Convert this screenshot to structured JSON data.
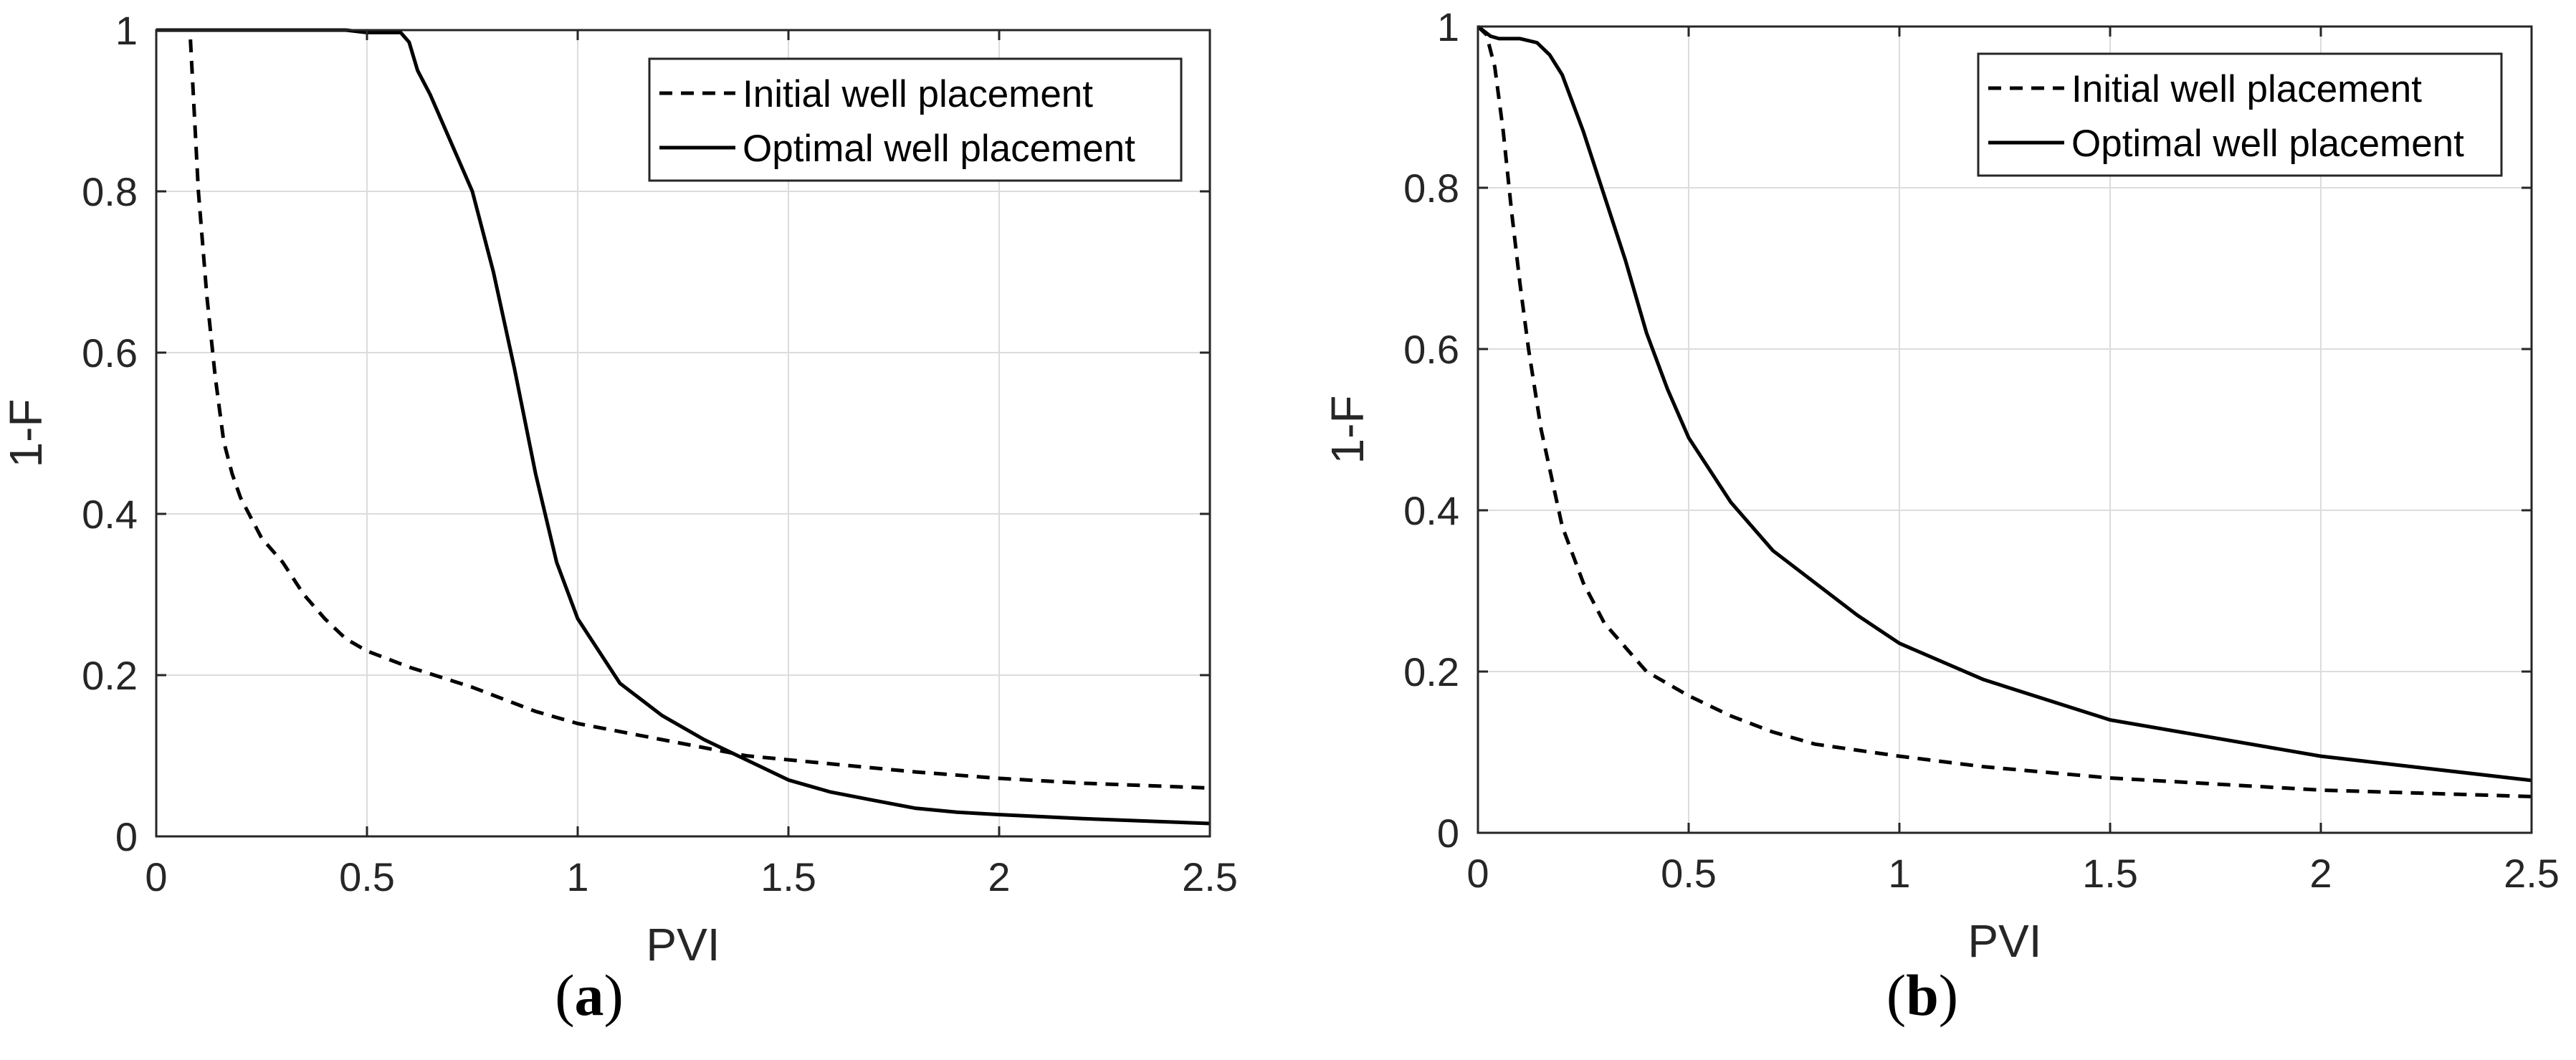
{
  "chart_data": [
    {
      "panel": "a",
      "type": "line",
      "xlabel": "PVI",
      "ylabel": "1-F",
      "xlim": [
        0,
        2.5
      ],
      "ylim": [
        0,
        1
      ],
      "xticks": [
        "0",
        "0.5",
        "1",
        "1.5",
        "2",
        "2.5"
      ],
      "yticks": [
        "0",
        "0.2",
        "0.4",
        "0.6",
        "0.8",
        "1"
      ],
      "grid": true,
      "legend_position": "top-right",
      "series": [
        {
          "name": "Initial well placement",
          "style": "dashed",
          "color": "#000000",
          "x": [
            0,
            0.05,
            0.08,
            0.09,
            0.1,
            0.12,
            0.14,
            0.16,
            0.18,
            0.2,
            0.25,
            0.3,
            0.35,
            0.4,
            0.45,
            0.5,
            0.6,
            0.75,
            0.9,
            1.0,
            1.2,
            1.4,
            1.6,
            1.8,
            2.0,
            2.2,
            2.5
          ],
          "y": [
            1.0,
            1.0,
            1.0,
            0.9,
            0.8,
            0.67,
            0.57,
            0.49,
            0.45,
            0.42,
            0.37,
            0.34,
            0.3,
            0.27,
            0.245,
            0.23,
            0.21,
            0.185,
            0.155,
            0.14,
            0.12,
            0.1,
            0.09,
            0.08,
            0.072,
            0.066,
            0.06
          ]
        },
        {
          "name": "Optimal well placement",
          "style": "solid",
          "color": "#000000",
          "x": [
            0,
            0.45,
            0.5,
            0.58,
            0.6,
            0.62,
            0.65,
            0.7,
            0.75,
            0.8,
            0.85,
            0.9,
            0.95,
            1.0,
            1.05,
            1.1,
            1.2,
            1.3,
            1.4,
            1.5,
            1.6,
            1.7,
            1.8,
            1.9,
            2.0,
            2.2,
            2.5
          ],
          "y": [
            1.0,
            1.0,
            0.997,
            0.997,
            0.985,
            0.95,
            0.92,
            0.86,
            0.8,
            0.7,
            0.58,
            0.45,
            0.34,
            0.27,
            0.23,
            0.19,
            0.15,
            0.12,
            0.095,
            0.07,
            0.055,
            0.045,
            0.035,
            0.03,
            0.027,
            0.022,
            0.016
          ]
        }
      ]
    },
    {
      "panel": "b",
      "type": "line",
      "xlabel": "PVI",
      "ylabel": "1-F",
      "xlim": [
        0,
        2.5
      ],
      "ylim": [
        0,
        1
      ],
      "xticks": [
        "0",
        "0.5",
        "1",
        "1.5",
        "2",
        "2.5"
      ],
      "yticks": [
        "0",
        "0.2",
        "0.4",
        "0.6",
        "0.8",
        "1"
      ],
      "grid": true,
      "legend_position": "top-right",
      "series": [
        {
          "name": "Initial well placement",
          "style": "dashed",
          "color": "#000000",
          "x": [
            0,
            0.02,
            0.04,
            0.06,
            0.08,
            0.1,
            0.12,
            0.15,
            0.2,
            0.25,
            0.3,
            0.35,
            0.4,
            0.5,
            0.6,
            0.7,
            0.8,
            1.0,
            1.2,
            1.5,
            2.0,
            2.5
          ],
          "y": [
            1.0,
            0.99,
            0.95,
            0.87,
            0.77,
            0.68,
            0.6,
            0.5,
            0.38,
            0.31,
            0.26,
            0.23,
            0.2,
            0.17,
            0.145,
            0.125,
            0.11,
            0.095,
            0.082,
            0.068,
            0.053,
            0.045
          ]
        },
        {
          "name": "Optimal well placement",
          "style": "solid",
          "color": "#000000",
          "x": [
            0,
            0.03,
            0.05,
            0.1,
            0.14,
            0.17,
            0.2,
            0.25,
            0.3,
            0.35,
            0.4,
            0.45,
            0.5,
            0.6,
            0.7,
            0.8,
            0.9,
            1.0,
            1.2,
            1.5,
            2.0,
            2.5
          ],
          "y": [
            1.0,
            0.988,
            0.985,
            0.985,
            0.98,
            0.965,
            0.94,
            0.87,
            0.79,
            0.71,
            0.62,
            0.55,
            0.49,
            0.41,
            0.35,
            0.31,
            0.27,
            0.235,
            0.19,
            0.14,
            0.095,
            0.065
          ]
        }
      ]
    }
  ],
  "captions": {
    "a": "a",
    "b": "b"
  }
}
